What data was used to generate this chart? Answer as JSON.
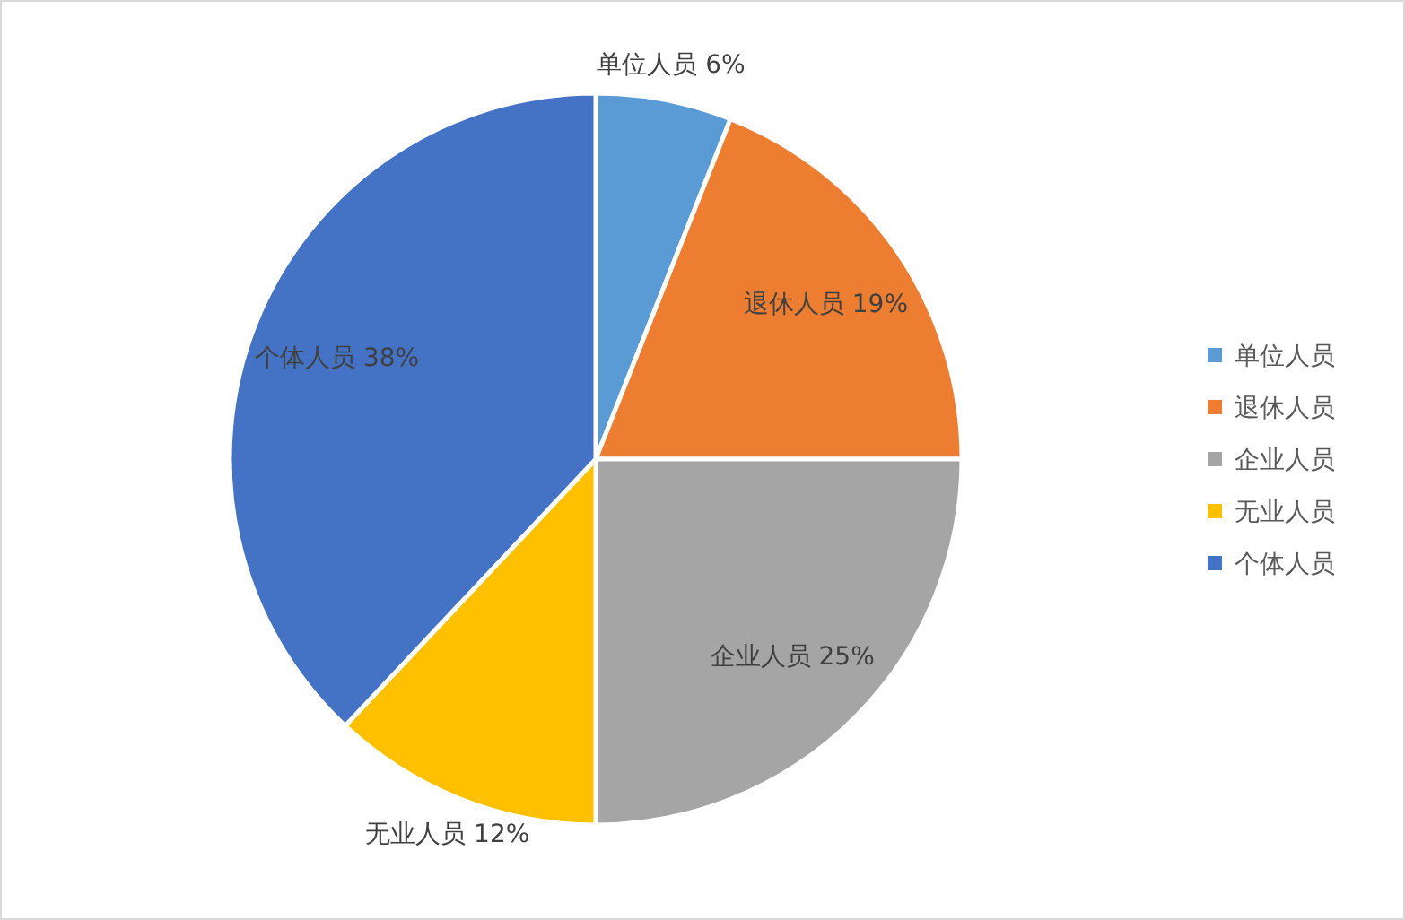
{
  "chart_data": {
    "type": "pie",
    "categories": [
      "单位人员",
      "退休人员",
      "企业人员",
      "无业人员",
      "个体人员"
    ],
    "values": [
      6,
      19,
      25,
      12,
      38
    ],
    "colors": [
      "#5b9bd5",
      "#ed7d31",
      "#a5a5a5",
      "#ffc000",
      "#4472c4"
    ],
    "value_labels": [
      "6%",
      "19%",
      "25%",
      "12%",
      "38%"
    ],
    "legend": "right"
  }
}
